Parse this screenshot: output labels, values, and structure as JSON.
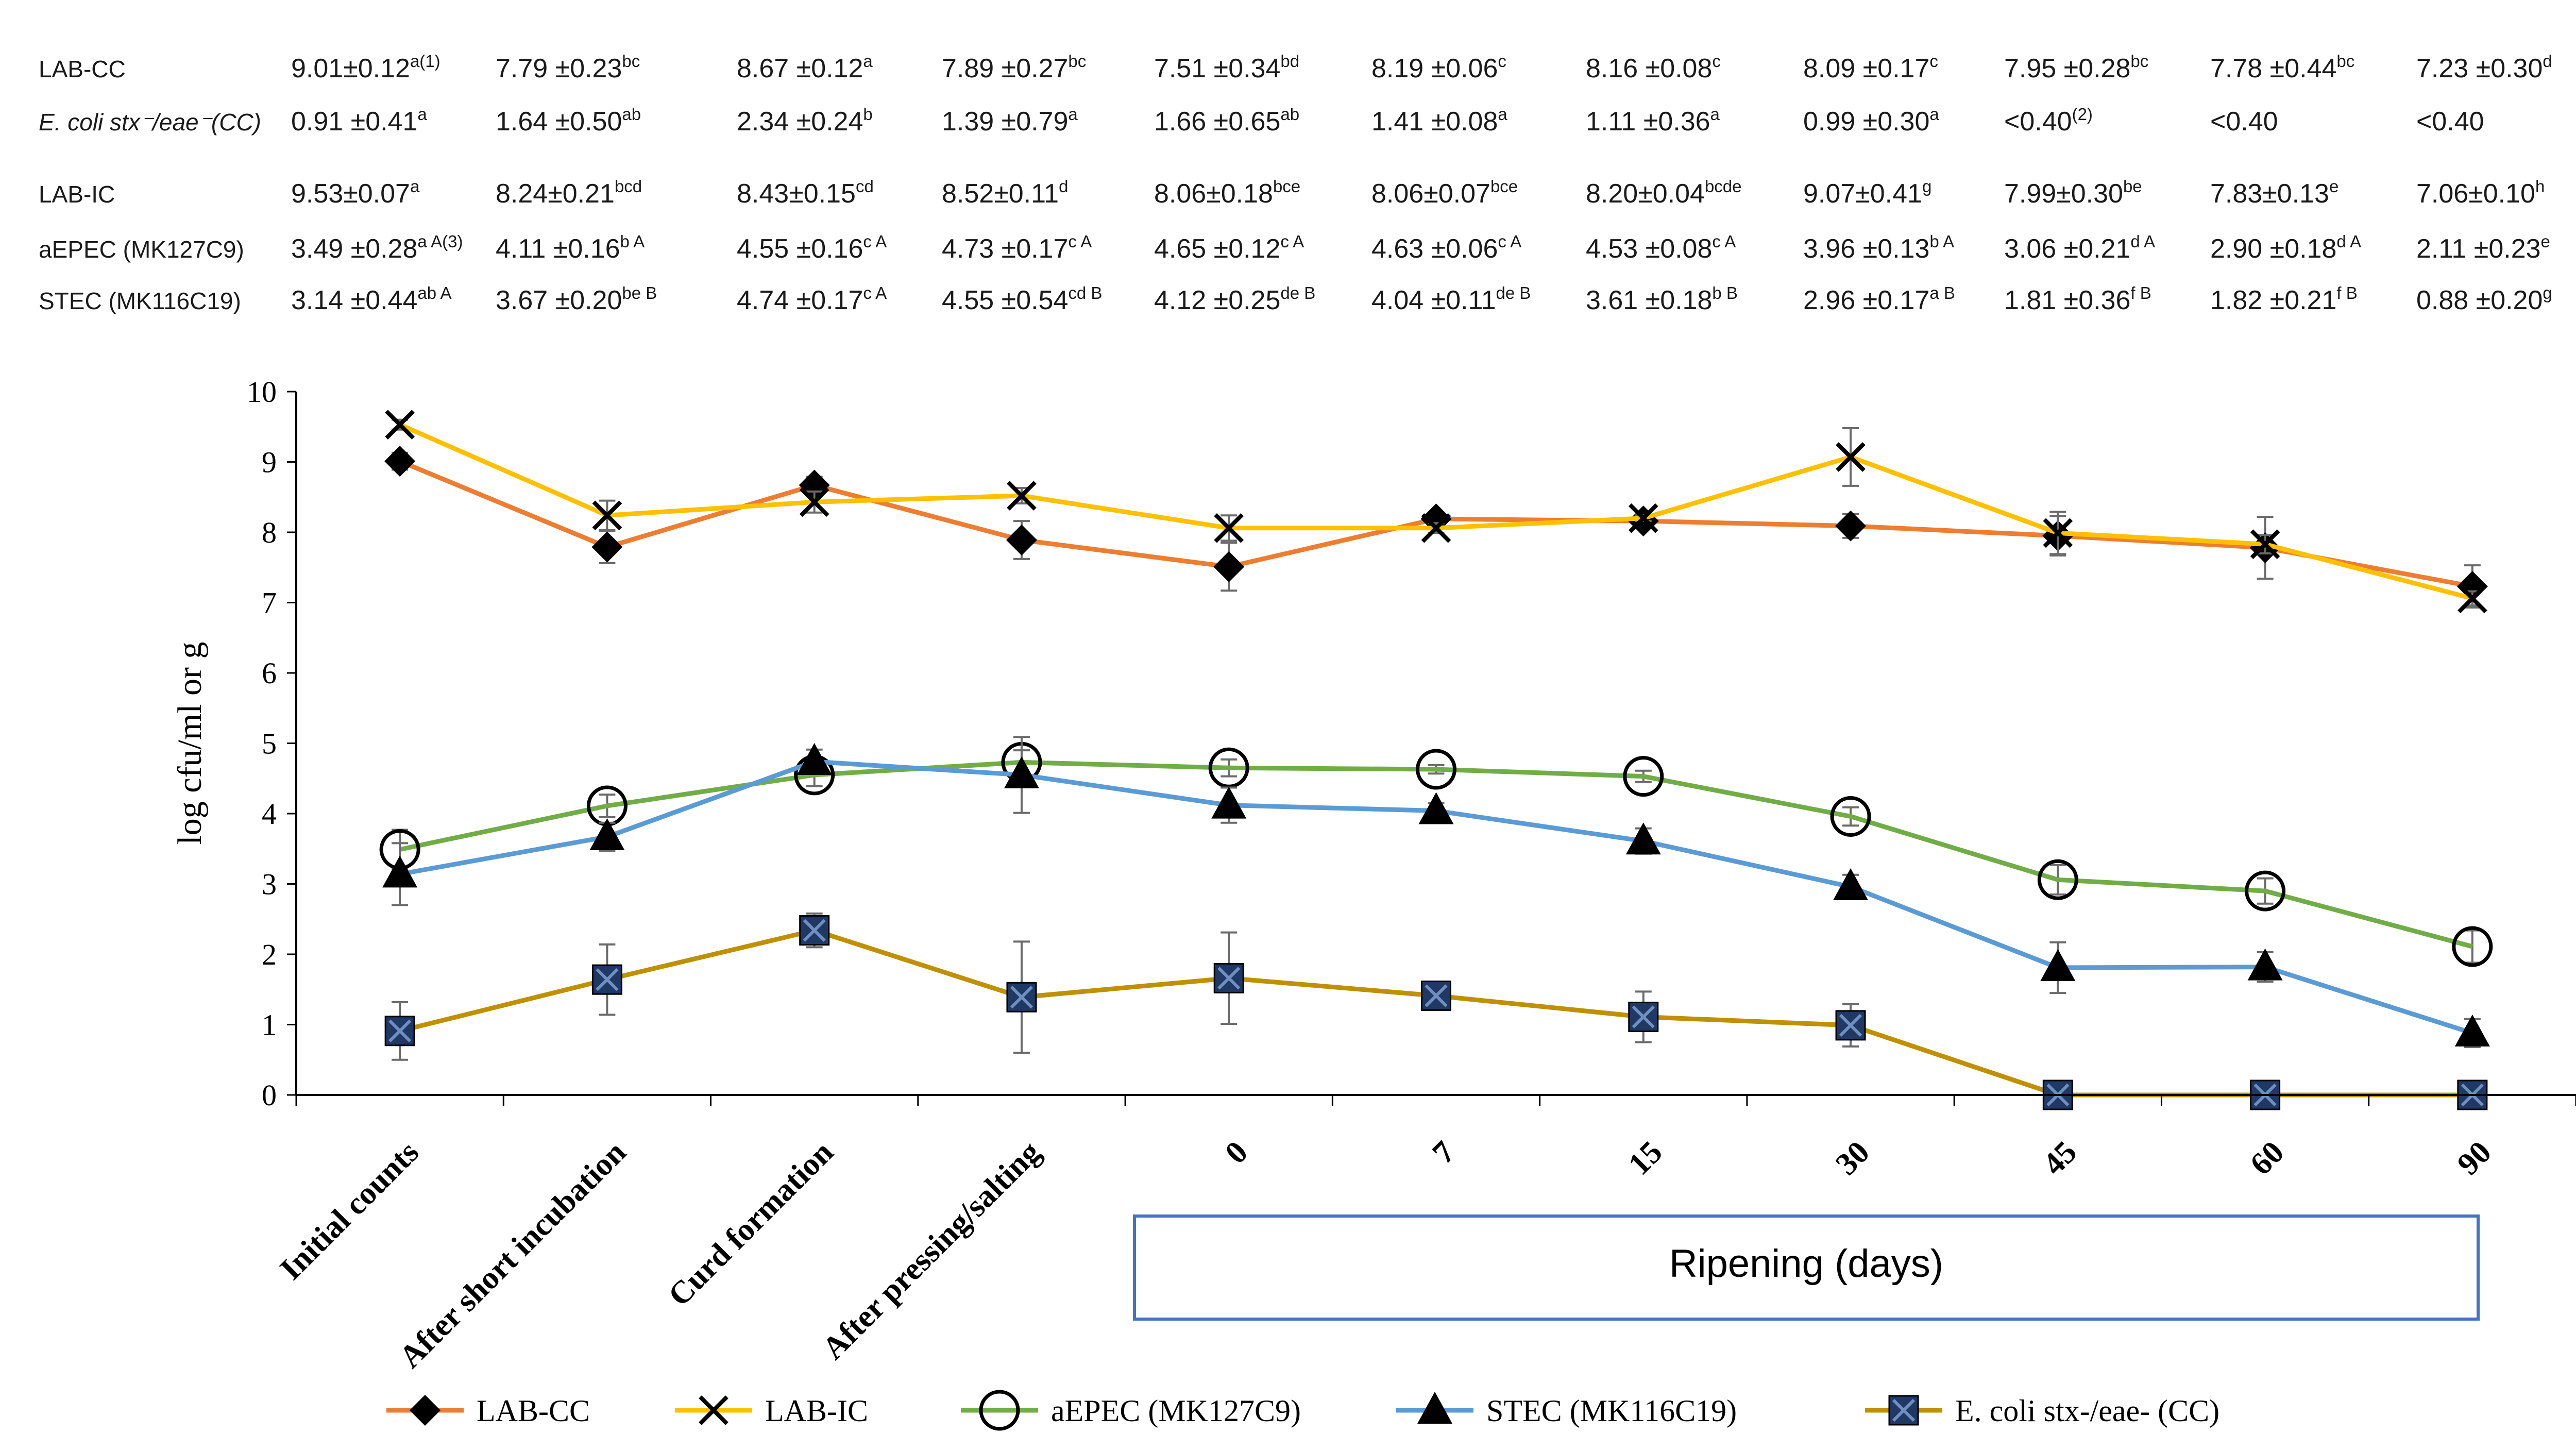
{
  "table": {
    "rows": [
      {
        "label": "LAB-CC",
        "cells": [
          {
            "v": "9.01±0.12",
            "s": "a(1)"
          },
          {
            "v": "7.79 ±0.23",
            "s": "bc"
          },
          {
            "v": "8.67 ±0.12",
            "s": "a"
          },
          {
            "v": "7.89 ±0.27",
            "s": "bc"
          },
          {
            "v": "7.51 ±0.34",
            "s": "bd"
          },
          {
            "v": "8.19 ±0.06",
            "s": "c"
          },
          {
            "v": "8.16 ±0.08",
            "s": "c"
          },
          {
            "v": "8.09 ±0.17",
            "s": "c"
          },
          {
            "v": "7.95 ±0.28",
            "s": "bc"
          },
          {
            "v": "7.78 ±0.44",
            "s": "bc"
          },
          {
            "v": "7.23 ±0.30",
            "s": "d"
          }
        ]
      },
      {
        "label": "E. coli stx⁻/eae⁻(CC)",
        "cells": [
          {
            "v": "0.91 ±0.41",
            "s": "a"
          },
          {
            "v": "1.64 ±0.50",
            "s": "ab"
          },
          {
            "v": "2.34 ±0.24",
            "s": "b"
          },
          {
            "v": "1.39 ±0.79",
            "s": "a"
          },
          {
            "v": "1.66 ±0.65",
            "s": "ab"
          },
          {
            "v": "1.41 ±0.08",
            "s": "a"
          },
          {
            "v": "1.11 ±0.36",
            "s": "a"
          },
          {
            "v": "0.99 ±0.30",
            "s": "a"
          },
          {
            "v": "<0.40",
            "s": "(2)"
          },
          {
            "v": "<0.40",
            "s": ""
          },
          {
            "v": "<0.40",
            "s": ""
          }
        ]
      },
      {
        "label": "LAB-IC",
        "cells": [
          {
            "v": "9.53±0.07",
            "s": "a"
          },
          {
            "v": "8.24±0.21",
            "s": "bcd"
          },
          {
            "v": "8.43±0.15",
            "s": "cd"
          },
          {
            "v": "8.52±0.11",
            "s": "d"
          },
          {
            "v": "8.06±0.18",
            "s": "bce"
          },
          {
            "v": "8.06±0.07",
            "s": "bce"
          },
          {
            "v": "8.20±0.04",
            "s": "bcde"
          },
          {
            "v": "9.07±0.41",
            "s": "g"
          },
          {
            "v": "7.99±0.30",
            "s": "be"
          },
          {
            "v": "7.83±0.13",
            "s": "e"
          },
          {
            "v": "7.06±0.10",
            "s": "h"
          }
        ]
      },
      {
        "label": "aEPEC (MK127C9)",
        "cells": [
          {
            "v": "3.49 ±0.28",
            "s": "a A(3)"
          },
          {
            "v": "4.11 ±0.16",
            "s": "b A"
          },
          {
            "v": "4.55 ±0.16",
            "s": "c A"
          },
          {
            "v": "4.73 ±0.17",
            "s": "c A"
          },
          {
            "v": "4.65 ±0.12",
            "s": "c A"
          },
          {
            "v": "4.63 ±0.06",
            "s": "c A"
          },
          {
            "v": "4.53 ±0.08",
            "s": "c A"
          },
          {
            "v": "3.96 ±0.13",
            "s": "b A"
          },
          {
            "v": "3.06 ±0.21",
            "s": "d A"
          },
          {
            "v": "2.90 ±0.18",
            "s": "d A"
          },
          {
            "v": "2.11 ±0.23",
            "s": "e"
          }
        ]
      },
      {
        "label": "STEC (MK116C19)",
        "cells": [
          {
            "v": "3.14 ±0.44",
            "s": "ab A"
          },
          {
            "v": "3.67 ±0.20",
            "s": "be B"
          },
          {
            "v": "4.74 ±0.17",
            "s": "c A"
          },
          {
            "v": "4.55 ±0.54",
            "s": "cd B"
          },
          {
            "v": "4.12 ±0.25",
            "s": "de B"
          },
          {
            "v": "4.04 ±0.11",
            "s": "de B"
          },
          {
            "v": "3.61 ±0.18",
            "s": "b B"
          },
          {
            "v": "2.96 ±0.17",
            "s": "a B"
          },
          {
            "v": "1.81 ±0.36",
            "s": "f B"
          },
          {
            "v": "1.82 ±0.21",
            "s": "f B"
          },
          {
            "v": "0.88 ±0.20",
            "s": "g"
          }
        ]
      }
    ]
  },
  "chart_data": {
    "type": "line",
    "title": "",
    "xlabel": "Ripening (days)",
    "ylabel": "log cfu/ml or g",
    "ylim": [
      0,
      10
    ],
    "yticks": [
      0,
      1,
      2,
      3,
      4,
      5,
      6,
      7,
      8,
      9,
      10
    ],
    "categories": [
      "Initial counts",
      "After short incubation",
      "Curd formation",
      "After pressing/salting",
      "0",
      "7",
      "15",
      "30",
      "45",
      "60",
      "90"
    ],
    "ripening_group_label": "Ripening (days)",
    "series": [
      {
        "name": "LAB-CC",
        "color": "#ED7D31",
        "marker": "diamond",
        "values": [
          9.01,
          7.79,
          8.67,
          7.89,
          7.51,
          8.19,
          8.16,
          8.09,
          7.95,
          7.78,
          7.23
        ],
        "errors": [
          0.12,
          0.23,
          0.12,
          0.27,
          0.34,
          0.06,
          0.08,
          0.17,
          0.28,
          0.44,
          0.3
        ]
      },
      {
        "name": "LAB-IC",
        "color": "#FFC000",
        "marker": "x",
        "values": [
          9.53,
          8.24,
          8.43,
          8.52,
          8.06,
          8.06,
          8.2,
          9.07,
          7.99,
          7.83,
          7.06
        ],
        "errors": [
          0.07,
          0.21,
          0.15,
          0.11,
          0.18,
          0.07,
          0.04,
          0.41,
          0.3,
          0.13,
          0.1
        ]
      },
      {
        "name": "aEPEC (MK127C9)",
        "color": "#70AD47",
        "marker": "circle",
        "values": [
          3.49,
          4.11,
          4.55,
          4.73,
          4.65,
          4.63,
          4.53,
          3.96,
          3.06,
          2.9,
          2.11
        ],
        "errors": [
          0.28,
          0.16,
          0.16,
          0.17,
          0.12,
          0.06,
          0.08,
          0.13,
          0.21,
          0.18,
          0.23
        ]
      },
      {
        "name": "STEC (MK116C19)",
        "color": "#5B9BD5",
        "marker": "triangle",
        "values": [
          3.14,
          3.67,
          4.74,
          4.55,
          4.12,
          4.04,
          3.61,
          2.96,
          1.81,
          1.82,
          0.88
        ],
        "errors": [
          0.44,
          0.2,
          0.17,
          0.54,
          0.25,
          0.11,
          0.18,
          0.17,
          0.36,
          0.21,
          0.2
        ]
      },
      {
        "name": "E. coli stx-/eae- (CC)",
        "color": "#BF9000",
        "marker": "square-x",
        "values": [
          0.91,
          1.64,
          2.34,
          1.39,
          1.66,
          1.41,
          1.11,
          0.99,
          0,
          0,
          0
        ],
        "errors": [
          0.41,
          0.5,
          0.24,
          0.79,
          0.65,
          0.08,
          0.36,
          0.3,
          0,
          0,
          0
        ]
      }
    ]
  }
}
